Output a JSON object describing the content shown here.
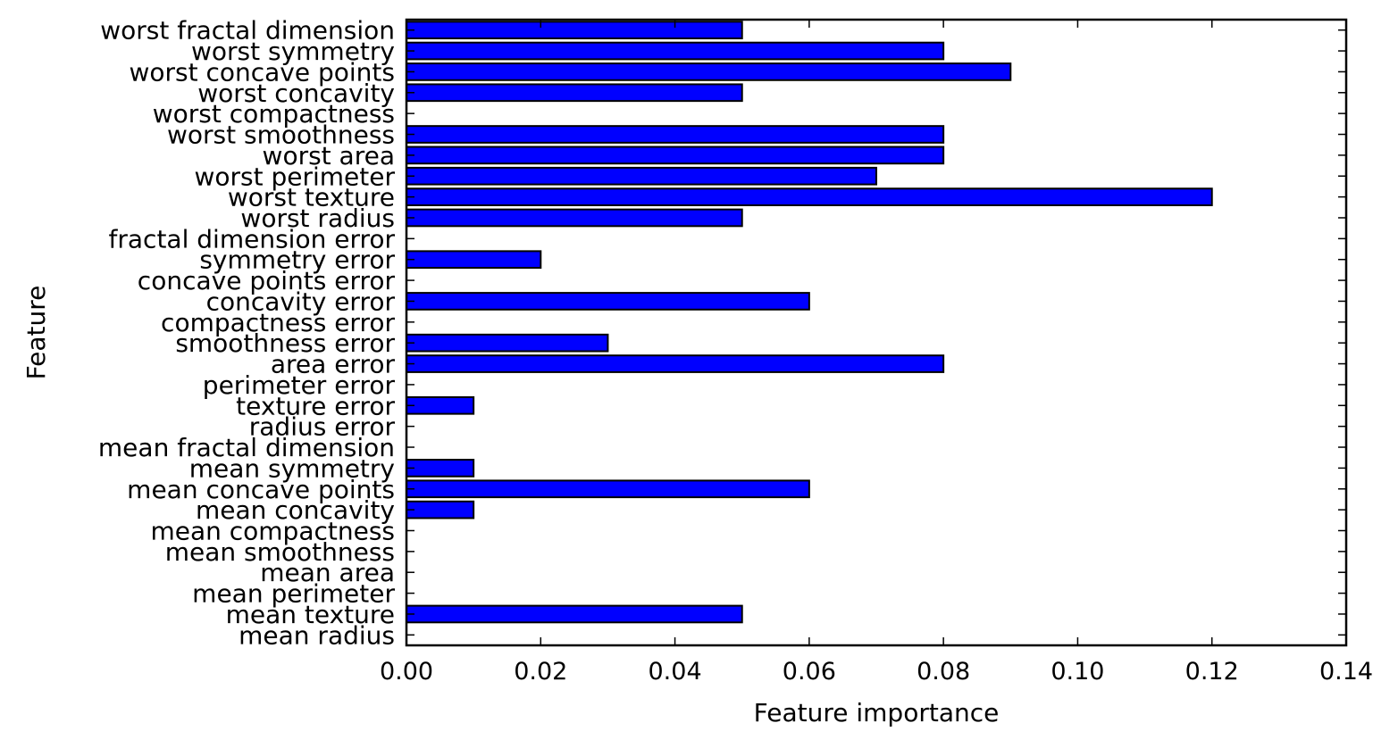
{
  "chart_data": {
    "type": "bar",
    "orientation": "horizontal",
    "xlabel": "Feature importance",
    "ylabel": "Feature",
    "xlim": [
      0.0,
      0.14
    ],
    "xticks": [
      "0.00",
      "0.02",
      "0.04",
      "0.06",
      "0.08",
      "0.10",
      "0.12",
      "0.14"
    ],
    "grid": false,
    "categories": [
      "mean radius",
      "mean texture",
      "mean perimeter",
      "mean area",
      "mean smoothness",
      "mean compactness",
      "mean concavity",
      "mean concave points",
      "mean symmetry",
      "mean fractal dimension",
      "radius error",
      "texture error",
      "perimeter error",
      "area error",
      "smoothness error",
      "compactness error",
      "concavity error",
      "concave points error",
      "symmetry error",
      "fractal dimension error",
      "worst radius",
      "worst texture",
      "worst perimeter",
      "worst area",
      "worst smoothness",
      "worst compactness",
      "worst concavity",
      "worst concave points",
      "worst symmetry",
      "worst fractal dimension"
    ],
    "values": [
      0.0,
      0.05,
      0.0,
      0.0,
      0.0,
      0.0,
      0.01,
      0.06,
      0.01,
      0.0,
      0.0,
      0.01,
      0.0,
      0.08,
      0.03,
      0.0,
      0.06,
      0.0,
      0.02,
      0.0,
      0.05,
      0.12,
      0.07,
      0.08,
      0.08,
      0.0,
      0.05,
      0.09,
      0.08,
      0.05
    ],
    "colors": {
      "bar": "#0000ff",
      "edge": "#000000",
      "axes": "#000000"
    }
  }
}
